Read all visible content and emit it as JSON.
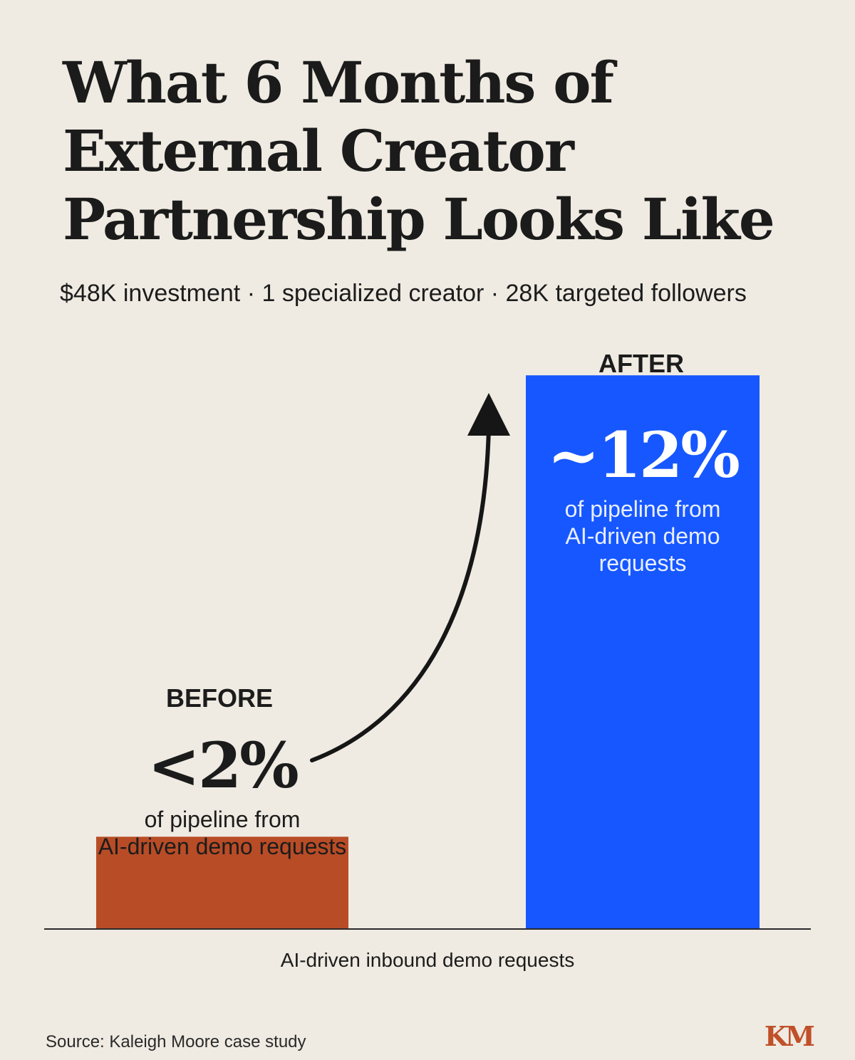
{
  "title_lines": [
    "What 6 Months of",
    "External Creator",
    "Partnership Looks Like"
  ],
  "subtitle": "$48K investment · 1 specialized creator · 28K targeted followers",
  "chart_data": {
    "type": "bar",
    "categories": [
      "BEFORE",
      "AFTER"
    ],
    "values": [
      2,
      12
    ],
    "value_labels": [
      "<2%",
      "~12%"
    ],
    "descriptions": [
      [
        "of pipeline from",
        "AI-driven demo requests"
      ],
      [
        "of pipeline from",
        "AI-driven demo",
        "requests"
      ]
    ],
    "colors": [
      "#b84c26",
      "#1657ff"
    ],
    "xlabel": "AI-driven inbound demo requests",
    "ylabel": "",
    "ylim": [
      0,
      13.5
    ],
    "grid": false,
    "legend": "none"
  },
  "footer": {
    "source": "Source: Kaleigh Moore case study",
    "logo": "KM"
  }
}
